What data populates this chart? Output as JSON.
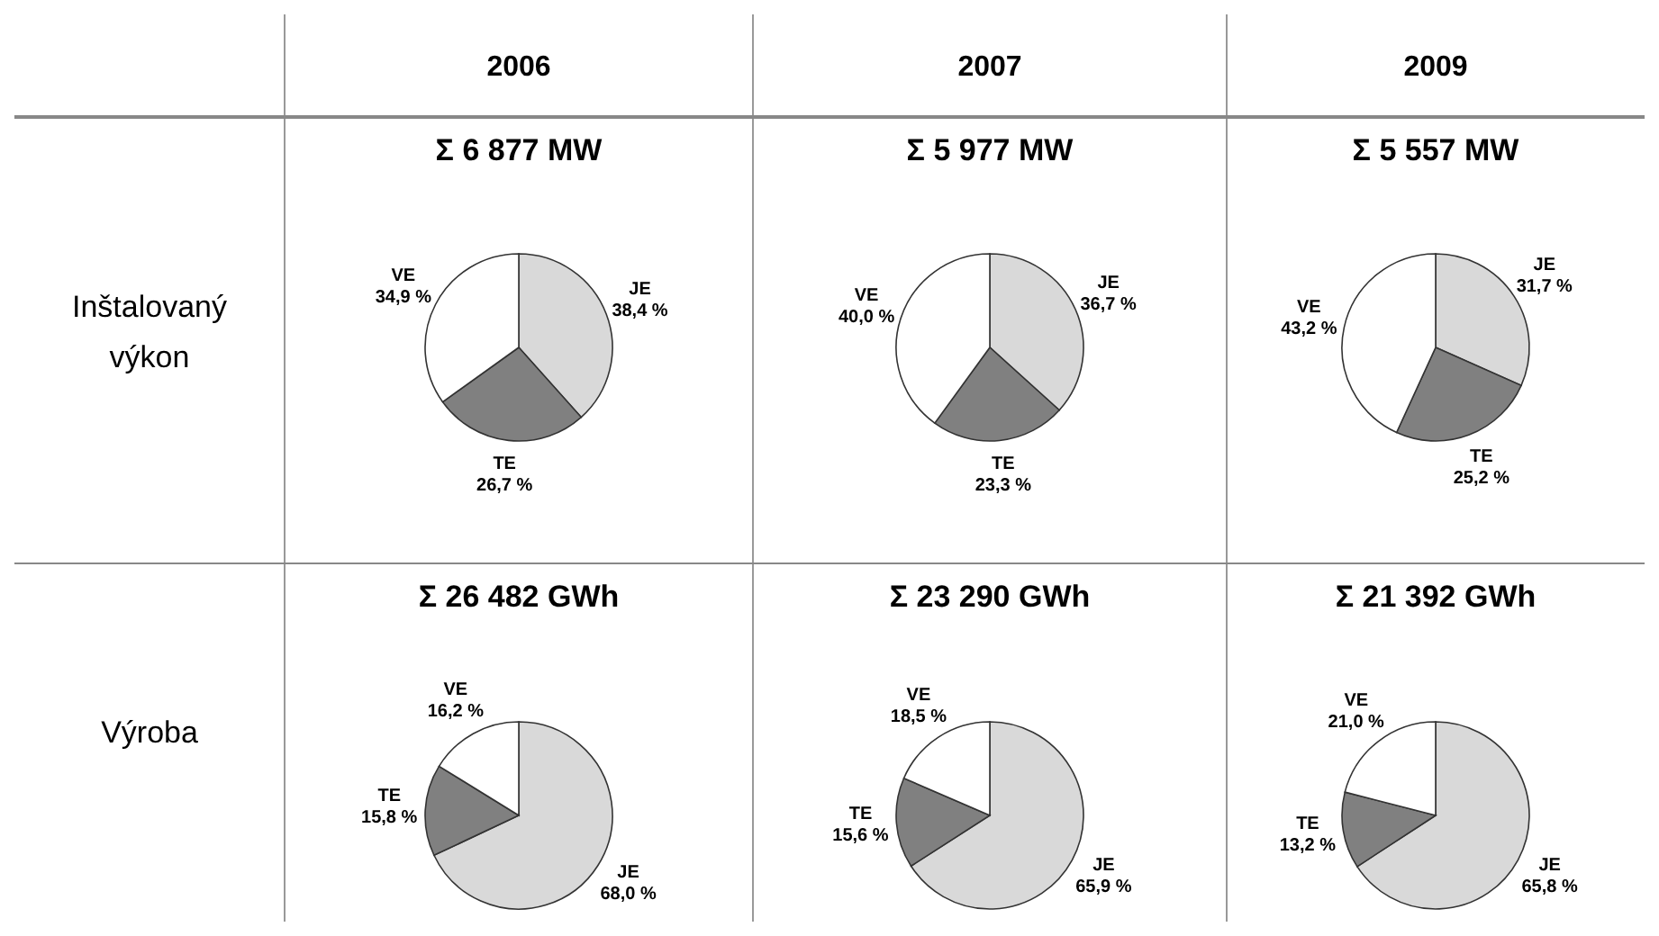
{
  "chart_data": [
    {
      "type": "other",
      "annotations": [
        "2006",
        "2007",
        "2009",
        "Inštalovaný výkon",
        "Výroba"
      ]
    },
    {
      "type": "pie",
      "title": "Σ 6 877 MW",
      "categories": [
        "JE",
        "TE",
        "VE"
      ],
      "values": [
        38.4,
        26.7,
        34.9
      ],
      "colors": [
        "#d9d9d9",
        "#808080",
        "#ffffff"
      ],
      "value_labels": [
        "38,4 %",
        "26,7 %",
        "34,9 %"
      ]
    },
    {
      "type": "pie",
      "title": "Σ 5 977 MW",
      "categories": [
        "JE",
        "TE",
        "VE"
      ],
      "values": [
        36.7,
        23.3,
        40.0
      ],
      "colors": [
        "#d9d9d9",
        "#808080",
        "#ffffff"
      ],
      "value_labels": [
        "36,7 %",
        "23,3 %",
        "40,0 %"
      ]
    },
    {
      "type": "pie",
      "title": "Σ 5 557 MW",
      "categories": [
        "JE",
        "TE",
        "VE"
      ],
      "values": [
        31.7,
        25.2,
        43.2
      ],
      "colors": [
        "#d9d9d9",
        "#808080",
        "#ffffff"
      ],
      "value_labels": [
        "31,7 %",
        "25,2 %",
        "43,2 %"
      ]
    },
    {
      "type": "pie",
      "title": "Σ 26 482 GWh",
      "categories": [
        "JE",
        "TE",
        "VE"
      ],
      "values": [
        68.0,
        15.8,
        16.2
      ],
      "colors": [
        "#d9d9d9",
        "#808080",
        "#ffffff"
      ],
      "value_labels": [
        "68,0 %",
        "15,8 %",
        "16,2 %"
      ]
    },
    {
      "type": "pie",
      "title": "Σ 23 290 GWh",
      "categories": [
        "JE",
        "TE",
        "VE"
      ],
      "values": [
        65.9,
        15.6,
        18.5
      ],
      "colors": [
        "#d9d9d9",
        "#808080",
        "#ffffff"
      ],
      "value_labels": [
        "65,9 %",
        "15,6 %",
        "18,5 %"
      ]
    },
    {
      "type": "pie",
      "title": "Σ 21 392 GWh",
      "categories": [
        "JE",
        "TE",
        "VE"
      ],
      "values": [
        65.8,
        13.2,
        21.0
      ],
      "colors": [
        "#d9d9d9",
        "#808080",
        "#ffffff"
      ],
      "value_labels": [
        "65,8 %",
        "13,2 %",
        "21,0 %"
      ]
    }
  ]
}
